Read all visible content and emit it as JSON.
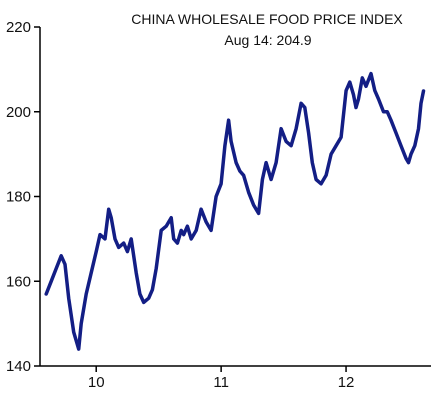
{
  "chart_data": {
    "type": "line",
    "title": "CHINA WHOLESALE FOOD PRICE INDEX",
    "subtitle": "Aug 14: 204.9",
    "xlabel": "",
    "ylabel": "",
    "ylim": [
      140,
      220
    ],
    "xlim": [
      9.55,
      12.68
    ],
    "yticks": [
      140,
      160,
      180,
      200,
      220
    ],
    "xticks": [
      10,
      11,
      12
    ],
    "xtick_labels": [
      "10",
      "11",
      "12"
    ],
    "grid": false,
    "legend": "none",
    "series": [
      {
        "color": "#131E85",
        "x": [
          9.6,
          9.64,
          9.68,
          9.72,
          9.75,
          9.78,
          9.82,
          9.86,
          9.88,
          9.92,
          9.96,
          10.0,
          10.03,
          10.07,
          10.1,
          10.12,
          10.15,
          10.18,
          10.22,
          10.25,
          10.28,
          10.32,
          10.35,
          10.38,
          10.42,
          10.45,
          10.48,
          10.52,
          10.56,
          10.6,
          10.62,
          10.65,
          10.68,
          10.7,
          10.73,
          10.76,
          10.8,
          10.84,
          10.88,
          10.92,
          10.96,
          11.0,
          11.03,
          11.06,
          11.08,
          11.12,
          11.15,
          11.18,
          11.22,
          11.26,
          11.3,
          11.33,
          11.36,
          11.4,
          11.44,
          11.48,
          11.52,
          11.56,
          11.6,
          11.64,
          11.67,
          11.7,
          11.73,
          11.76,
          11.8,
          11.84,
          11.88,
          11.92,
          11.96,
          12.0,
          12.03,
          12.06,
          12.08,
          12.1,
          12.13,
          12.16,
          12.2,
          12.23,
          12.26,
          12.3,
          12.33,
          12.36,
          12.4,
          12.44,
          12.48,
          12.5,
          12.52,
          12.55,
          12.58,
          12.6,
          12.62
        ],
        "y": [
          157,
          160,
          163,
          166,
          164,
          156,
          148,
          144,
          150,
          157,
          162,
          167,
          171,
          170,
          177,
          175,
          170,
          168,
          169,
          167,
          170,
          162,
          157,
          155,
          156,
          158,
          163,
          172,
          173,
          175,
          170,
          169,
          172,
          171,
          173,
          170,
          172,
          177,
          174,
          172,
          180,
          183,
          192,
          198,
          193,
          188,
          186,
          185,
          181,
          178,
          176,
          184,
          188,
          184,
          188,
          196,
          193,
          192,
          196,
          202,
          201,
          195,
          188,
          184,
          183,
          185,
          190,
          192,
          194,
          205,
          207,
          204,
          201,
          203,
          208,
          206,
          209,
          205,
          203,
          200,
          200,
          198,
          195,
          192,
          189,
          188,
          190,
          192,
          196,
          202,
          204.9
        ]
      }
    ]
  }
}
